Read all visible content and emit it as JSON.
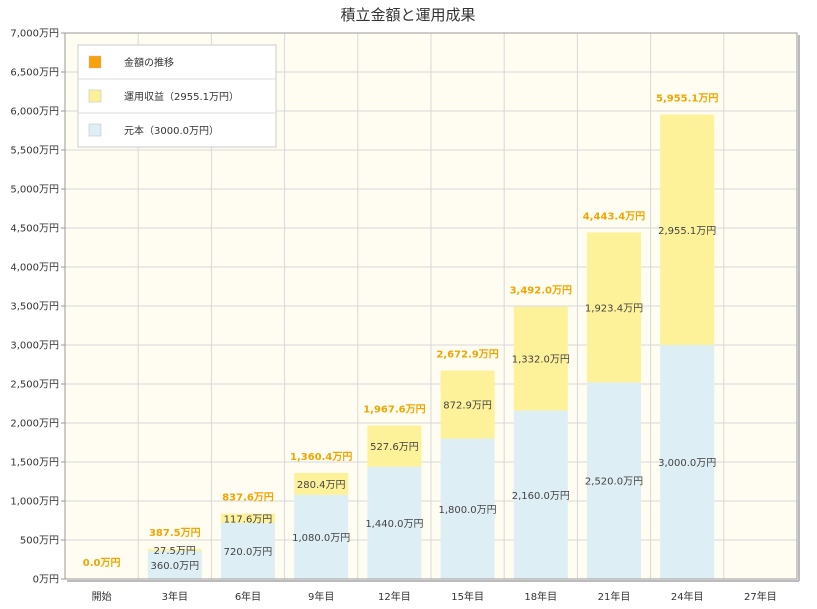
{
  "chart_data": {
    "type": "bar",
    "stacked": true,
    "title": "積立金額と運用成果",
    "categories": [
      "開始",
      "3年目",
      "6年目",
      "9年目",
      "12年目",
      "15年目",
      "18年目",
      "21年目",
      "24年目",
      "27年目"
    ],
    "series": [
      {
        "name": "元本（3000.0万円）",
        "color": "#deeef5",
        "values": [
          0,
          360,
          720,
          1080,
          1440,
          1800,
          2160,
          2520,
          3000,
          null
        ],
        "labels": [
          "",
          "360.0万円",
          "720.0万円",
          "1,080.0万円",
          "1,440.0万円",
          "1,800.0万円",
          "2,160.0万円",
          "2,520.0万円",
          "3,000.0万円",
          ""
        ]
      },
      {
        "name": "運用収益（2955.1万円）",
        "color": "#fdf19a",
        "values": [
          0,
          27.5,
          117.6,
          280.4,
          527.6,
          872.9,
          1332.0,
          1923.4,
          2955.1,
          null
        ],
        "labels": [
          "",
          "27.5万円",
          "117.6万円",
          "280.4万円",
          "527.6万円",
          "872.9万円",
          "1,332.0万円",
          "1,923.4万円",
          "2,955.1万円",
          ""
        ]
      }
    ],
    "totals": {
      "name": "金額の推移",
      "color": "#f7a20a",
      "values": [
        0,
        387.5,
        837.6,
        1360.4,
        1967.6,
        2672.9,
        3492.0,
        4443.4,
        5955.1,
        null
      ],
      "labels": [
        "0.0万円",
        "387.5万円",
        "837.6万円",
        "1,360.4万円",
        "1,967.6万円",
        "2,672.9万円",
        "3,492.0万円",
        "4,443.4万円",
        "5,955.1万円",
        ""
      ]
    },
    "ylim": [
      0,
      7000
    ],
    "yticks": [
      0,
      500,
      1000,
      1500,
      2000,
      2500,
      3000,
      3500,
      4000,
      4500,
      5000,
      5500,
      6000,
      6500,
      7000
    ],
    "ytick_labels": [
      "0万円",
      "500万円",
      "1,000万円",
      "1,500万円",
      "2,000万円",
      "2,500万円",
      "3,000万円",
      "3,500万円",
      "4,000万円",
      "4,500万円",
      "5,000万円",
      "5,500万円",
      "6,000万円",
      "6,500万円",
      "7,000万円"
    ],
    "grid": true,
    "legend_position": "top-left",
    "plot_background": "#fffdf2"
  }
}
